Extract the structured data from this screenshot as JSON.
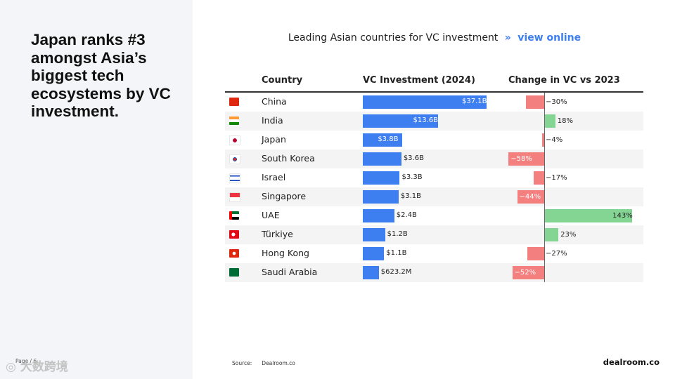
{
  "headline": "Japan ranks #3 amongst Asia’s biggest tech ecosystems by VC investment.",
  "chart_data": {
    "type": "table",
    "title": "Leading Asian countries for VC investment",
    "title_separator": "»",
    "link_text": "view online",
    "columns": [
      "Country",
      "VC Investment (2024)",
      "Change in VC vs 2023"
    ],
    "vc_unit": "USD billions",
    "change_unit": "percent",
    "change_axis_zero": 0,
    "rows": [
      {
        "country": "China",
        "flag": "china-flag-icon",
        "vc_value": 37.1,
        "vc_label": "$37.1B",
        "change": -30,
        "change_label": "−30%"
      },
      {
        "country": "India",
        "flag": "india-flag-icon",
        "vc_value": 13.6,
        "vc_label": "$13.6B",
        "change": 18,
        "change_label": "18%"
      },
      {
        "country": "Japan",
        "flag": "japan-flag-icon",
        "vc_value": 3.8,
        "vc_label": "$3.8B",
        "change": -4,
        "change_label": "−4%"
      },
      {
        "country": "South Korea",
        "flag": "south-korea-flag-icon",
        "vc_value": 3.6,
        "vc_label": "$3.6B",
        "change": -58,
        "change_label": "−58%"
      },
      {
        "country": "Israel",
        "flag": "israel-flag-icon",
        "vc_value": 3.3,
        "vc_label": "$3.3B",
        "change": -17,
        "change_label": "−17%"
      },
      {
        "country": "Singapore",
        "flag": "singapore-flag-icon",
        "vc_value": 3.1,
        "vc_label": "$3.1B",
        "change": -44,
        "change_label": "−44%"
      },
      {
        "country": "UAE",
        "flag": "uae-flag-icon",
        "vc_value": 2.4,
        "vc_label": "$2.4B",
        "change": 143,
        "change_label": "143%"
      },
      {
        "country": "Türkiye",
        "flag": "turkiye-flag-icon",
        "vc_value": 1.2,
        "vc_label": "$1.2B",
        "change": 23,
        "change_label": "23%"
      },
      {
        "country": "Hong Kong",
        "flag": "hong-kong-flag-icon",
        "vc_value": 1.1,
        "vc_label": "$1.1B",
        "change": -27,
        "change_label": "−27%"
      },
      {
        "country": "Saudi Arabia",
        "flag": "saudi-arabia-flag-icon",
        "vc_value": 0.6232,
        "vc_label": "$623.2M",
        "change": -52,
        "change_label": "−52%"
      }
    ]
  },
  "footer": {
    "source_label": "Source:",
    "source_value": "Dealroom.co",
    "brand": "dealroom.co",
    "page": "Page / 6"
  },
  "watermark": "大数跨境",
  "colors": {
    "vc_bar": "#3d7ef0",
    "negative": "#f37f7f",
    "positive": "#84d493",
    "link": "#3d7ef0",
    "panel": "#f4f5f8"
  }
}
